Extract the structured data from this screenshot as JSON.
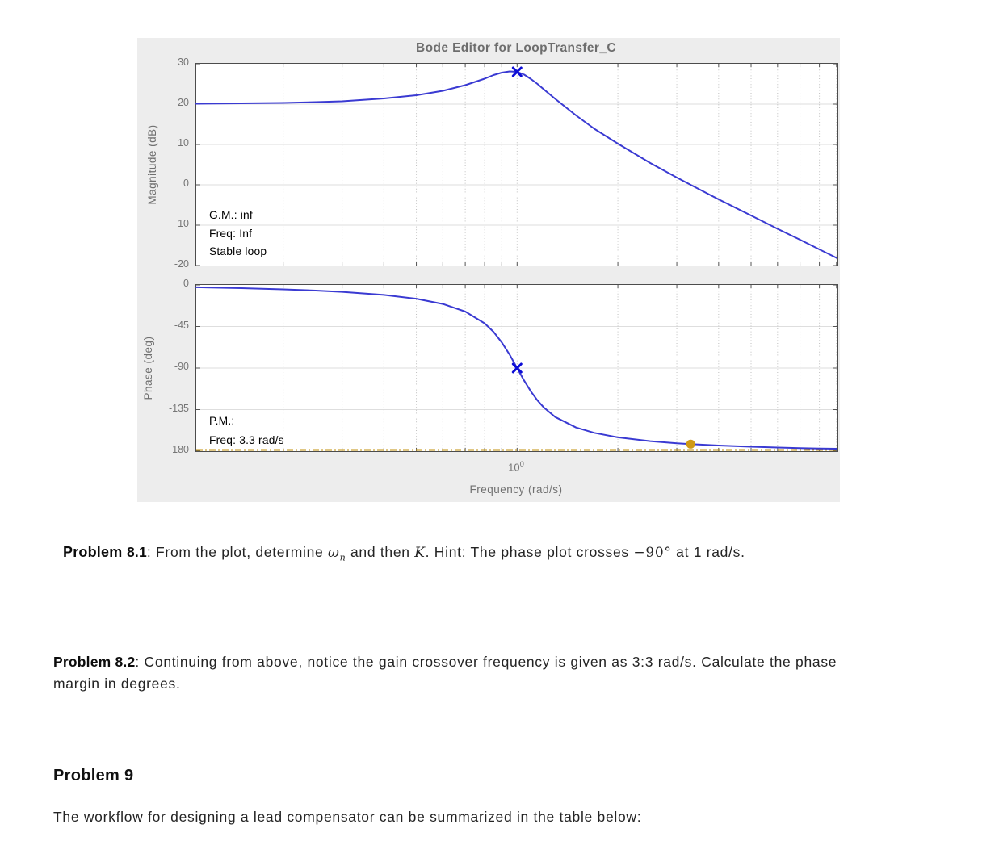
{
  "chart_data": [
    {
      "type": "line",
      "name": "magnitude-plot",
      "title": "Bode Editor for LoopTransfer_C",
      "ylabel": "Magnitude (dB)",
      "xscale": "log",
      "xlim": [
        0.11,
        9.06
      ],
      "ylim": [
        -20,
        30
      ],
      "yticks": [
        30,
        20,
        10,
        0,
        -10,
        -20
      ],
      "x_gridlines": [
        0.2,
        0.3,
        0.4,
        0.5,
        0.6,
        0.7,
        0.8,
        0.9,
        1,
        2,
        3,
        4,
        5,
        6,
        7,
        8,
        9
      ],
      "series": [
        {
          "name": "open-loop-magnitude",
          "color": "#3A3AD2",
          "x": [
            0.11,
            0.15,
            0.2,
            0.25,
            0.3,
            0.4,
            0.5,
            0.6,
            0.7,
            0.8,
            0.85,
            0.9,
            0.95,
            1.0,
            1.05,
            1.1,
            1.15,
            1.2,
            1.3,
            1.5,
            1.7,
            2.0,
            2.5,
            3.0,
            3.3,
            4.0,
            5.0,
            6.0,
            7.0,
            8.0,
            9.0
          ],
          "y": [
            20.1,
            20.2,
            20.3,
            20.5,
            20.7,
            21.4,
            22.2,
            23.3,
            24.7,
            26.3,
            27.2,
            27.8,
            28.1,
            28.0,
            27.3,
            26.2,
            25.0,
            23.7,
            21.3,
            17.2,
            13.9,
            10.2,
            5.4,
            1.8,
            0.0,
            -3.6,
            -7.6,
            -10.9,
            -13.6,
            -16.0,
            -18.1
          ]
        }
      ],
      "markers": [
        {
          "name": "resonant-peak-marker",
          "shape": "x",
          "x": 1.0,
          "y": 28.0,
          "color": "#0D0DD6"
        }
      ],
      "annotations": {
        "gm": "G.M.: inf",
        "freq": "Freq: Inf",
        "stability": "Stable loop"
      }
    },
    {
      "type": "line",
      "name": "phase-plot",
      "ylabel": "Phase (deg)",
      "xlabel": "Frequency (rad/s)",
      "xtick_label": {
        "base": "10",
        "exponent": "0"
      },
      "xscale": "log",
      "xlim": [
        0.11,
        9.06
      ],
      "ylim": [
        -180,
        0
      ],
      "yticks": [
        0,
        -45,
        -90,
        -135,
        -180
      ],
      "x_gridlines": [
        0.2,
        0.3,
        0.4,
        0.5,
        0.6,
        0.7,
        0.8,
        0.9,
        1,
        2,
        3,
        4,
        5,
        6,
        7,
        8,
        9
      ],
      "series": [
        {
          "name": "open-loop-phase",
          "color": "#3A3AD2",
          "x": [
            0.11,
            0.15,
            0.2,
            0.25,
            0.3,
            0.4,
            0.5,
            0.6,
            0.7,
            0.8,
            0.85,
            0.9,
            0.95,
            1.0,
            1.05,
            1.1,
            1.15,
            1.2,
            1.3,
            1.5,
            1.7,
            2.0,
            2.5,
            3.0,
            3.3,
            4.0,
            5.0,
            6.0,
            7.0,
            8.0,
            9.0
          ],
          "y": [
            -2.5,
            -3.5,
            -4.8,
            -6.1,
            -7.5,
            -10.8,
            -14.9,
            -20.6,
            -28.8,
            -41.6,
            -50.8,
            -62.2,
            -75.6,
            -90.0,
            -103.7,
            -115.5,
            -125.0,
            -132.5,
            -143.0,
            -154.4,
            -160.2,
            -165.1,
            -169.2,
            -171.5,
            -172.4,
            -173.9,
            -175.2,
            -176.1,
            -176.7,
            -177.1,
            -177.4
          ]
        }
      ],
      "markers": [
        {
          "name": "phase-crossover-marker",
          "shape": "x",
          "x": 1.0,
          "y": -90,
          "color": "#0D0DD6"
        },
        {
          "name": "phase-margin-marker",
          "shape": "dot",
          "x": 3.3,
          "y": -172.4,
          "color": "#D09A15"
        }
      ],
      "ref_line": {
        "y": -180,
        "color": "#C08F0A",
        "style": "dash-dot"
      },
      "annotations": {
        "pm": "P.M.:",
        "freq": "Freq: 3.3 rad/s"
      }
    }
  ],
  "problems": {
    "p81": {
      "heading": "Problem",
      "number": "8.1",
      "s1": ": From the plot, determine ",
      "omega": "ω",
      "omega_sub": "n",
      "s2": " and then ",
      "K": "K",
      "s3": ". Hint: The phase plot crosses ",
      "neg90": "−90°",
      "s4": " at 1 rad/s."
    },
    "p82": {
      "heading": "Problem 8.2",
      "body": ": Continuing from above, notice the gain crossover frequency is given as 3:3 rad/s. Calculate the phase margin in degrees."
    },
    "p9": {
      "heading": "Problem 9",
      "body": "The workflow for designing a lead compensator can be summarized in the table below:"
    }
  }
}
